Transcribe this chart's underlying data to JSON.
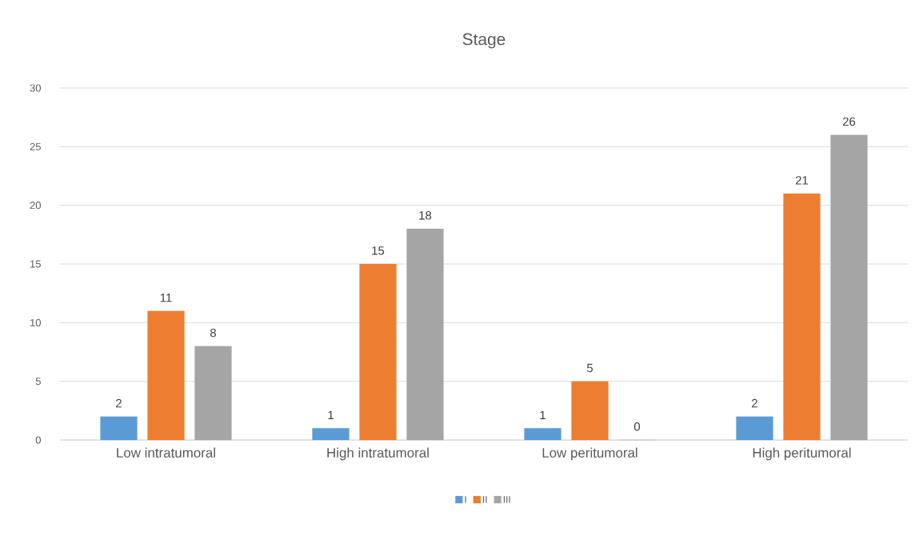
{
  "chart_data": {
    "type": "bar",
    "title": "Stage",
    "categories": [
      "Low intratumoral",
      "High intratumoral",
      "Low peritumoral",
      "High peritumoral"
    ],
    "series": [
      {
        "name": "I",
        "color": "#5b9bd5",
        "values": [
          2,
          1,
          1,
          2
        ]
      },
      {
        "name": "II",
        "color": "#ed7d31",
        "values": [
          11,
          15,
          5,
          21
        ]
      },
      {
        "name": "III",
        "color": "#a5a5a5",
        "values": [
          8,
          18,
          0,
          26
        ]
      }
    ],
    "ylim": [
      0,
      30
    ],
    "yticks": [
      0,
      5,
      10,
      15,
      20,
      25,
      30
    ],
    "grid": "y",
    "legend": "bottom",
    "data_labels": true
  }
}
